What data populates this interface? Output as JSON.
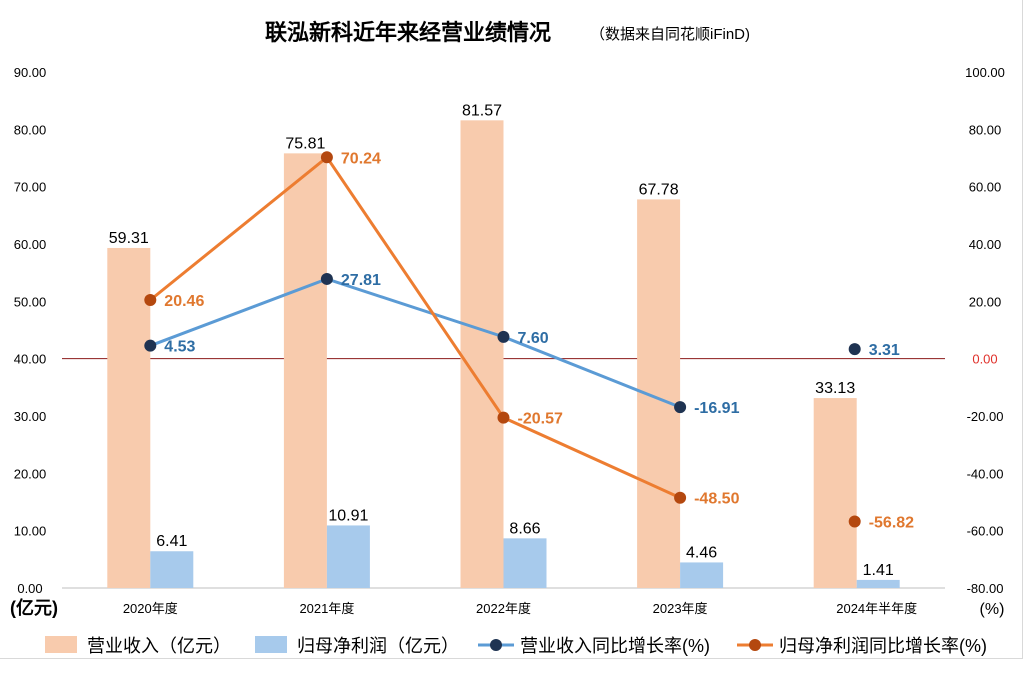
{
  "chart_data": {
    "type": "bar+line",
    "title": "联泓新科近年来经营业绩情况",
    "subtitle": "（数据来自同花顺iFinD)",
    "categories": [
      "2020年度",
      "2021年度",
      "2022年度",
      "2023年度",
      "2024年半年度"
    ],
    "left_axis": {
      "label": "(亿元)",
      "range": [
        0,
        90
      ],
      "ticks": [
        "0.00",
        "10.00",
        "20.00",
        "30.00",
        "40.00",
        "50.00",
        "60.00",
        "70.00",
        "80.00",
        "90.00"
      ]
    },
    "right_axis": {
      "label": "(%)",
      "range": [
        -80,
        100
      ],
      "ticks": [
        "-80.00",
        "-60.00",
        "-40.00",
        "-20.00",
        "0.00",
        "20.00",
        "40.00",
        "60.00",
        "80.00",
        "100.00"
      ]
    },
    "series": [
      {
        "name": "营业收入（亿元）",
        "kind": "bar",
        "axis": "left",
        "values": [
          59.31,
          75.81,
          81.57,
          67.78,
          33.13
        ],
        "labels": [
          "59.31",
          "75.81",
          "81.57",
          "67.78",
          "33.13"
        ],
        "color": "#F8CBAD"
      },
      {
        "name": "归母净利润（亿元）",
        "kind": "bar",
        "axis": "left",
        "values": [
          6.41,
          10.91,
          8.66,
          4.46,
          1.41
        ],
        "labels": [
          "6.41",
          "10.91",
          "8.66",
          "4.46",
          "1.41"
        ],
        "color": "#A7CAEC"
      },
      {
        "name": "营业收入同比增长率(%)",
        "kind": "line",
        "axis": "right",
        "values": [
          4.53,
          27.81,
          7.6,
          -16.91,
          3.31
        ],
        "labels": [
          "4.53",
          "27.81",
          "7.60",
          "-16.91",
          "3.31"
        ],
        "color": "#5B9BD5",
        "marker_color": "#1F3352",
        "label_color": "#2E6DA4"
      },
      {
        "name": "归母净利润同比增长率(%)",
        "kind": "line",
        "axis": "right",
        "values": [
          20.46,
          70.24,
          -20.57,
          -48.5,
          -56.82
        ],
        "labels": [
          "20.46",
          "70.24",
          "-20.57",
          "-48.50",
          "-56.82"
        ],
        "color": "#ED7D31",
        "marker_color": "#B4480F",
        "label_color": "#E0782F"
      }
    ],
    "zero_line_color": "#8B1A1A",
    "right_zero_label_color": "#E0302A",
    "legend_position": "bottom",
    "grid": false
  }
}
